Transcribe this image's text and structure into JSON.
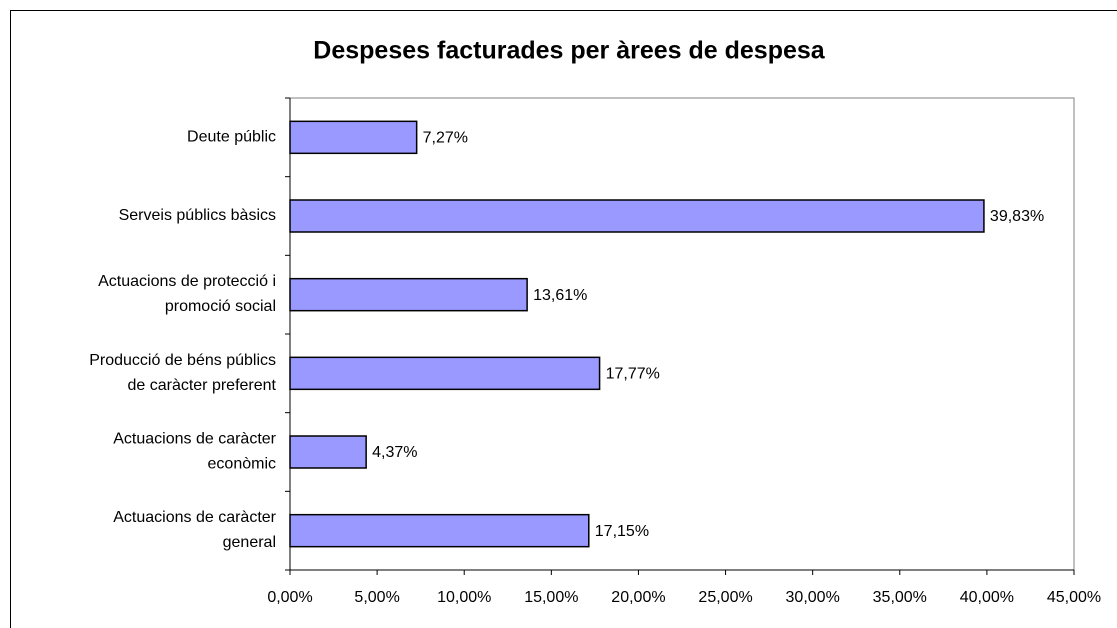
{
  "chart_data": {
    "type": "bar",
    "orientation": "horizontal",
    "title": "Despeses facturades per àrees de despesa",
    "categories": [
      "Deute públic",
      "Serveis públics bàsics",
      "Actuacions de protecció i promoció social",
      "Producció de béns públics de caràcter preferent",
      "Actuacions de caràcter econòmic",
      "Actuacions de caràcter general"
    ],
    "values": [
      7.27,
      39.83,
      13.61,
      17.77,
      4.37,
      17.15
    ],
    "value_labels": [
      "7,27%",
      "39,83%",
      "13,61%",
      "17,77%",
      "4,37%",
      "17,15%"
    ],
    "color": "#9999ff",
    "xlim": [
      0,
      45
    ],
    "xticks": [
      {
        "value": 0,
        "label": "0,00%"
      },
      {
        "value": 5,
        "label": "5,00%"
      },
      {
        "value": 10,
        "label": "10,00%"
      },
      {
        "value": 15,
        "label": "15,00%"
      },
      {
        "value": 20,
        "label": "20,00%"
      },
      {
        "value": 25,
        "label": "25,00%"
      },
      {
        "value": 30,
        "label": "30,00%"
      },
      {
        "value": 35,
        "label": "35,00%"
      },
      {
        "value": 40,
        "label": "40,00%"
      },
      {
        "value": 45,
        "label": "45,00%"
      }
    ],
    "grid": false
  }
}
